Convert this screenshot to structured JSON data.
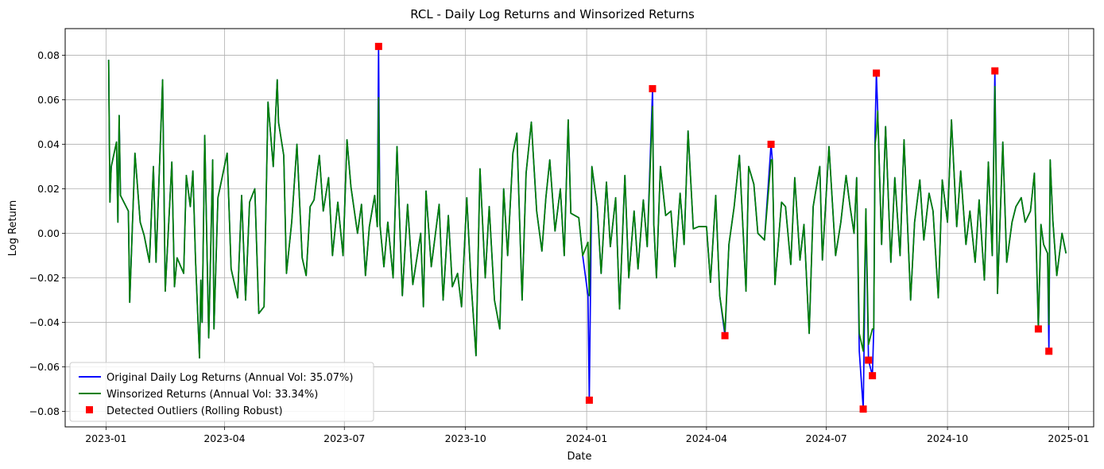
{
  "chart_data": {
    "type": "line",
    "title": "RCL - Daily Log Returns and Winsorized Returns",
    "xlabel": "Date",
    "ylabel": "Log Return",
    "xlim": [
      "2022-12-01",
      "2025-01-20"
    ],
    "ylim": [
      -0.087,
      0.092
    ],
    "grid": true,
    "legend_position": "lower-left",
    "x_ticks": [
      "2023-01",
      "2023-04",
      "2023-07",
      "2023-10",
      "2024-01",
      "2024-04",
      "2024-07",
      "2024-10",
      "2025-01"
    ],
    "y_ticks": [
      0.08,
      0.06,
      0.04,
      0.02,
      0.0,
      -0.02,
      -0.04,
      -0.06,
      -0.08
    ],
    "y_tick_labels": [
      "0.08",
      "0.06",
      "0.04",
      "0.02",
      "0.00",
      "−0.02",
      "−0.04",
      "−0.06",
      "−0.08"
    ],
    "series": [
      {
        "name": "Original Daily Log Returns (Annual Vol: 35.07%)",
        "color": "#0000ff",
        "kind": "line",
        "points": [
          [
            "2023-01-03",
            0.078
          ],
          [
            "2023-01-04",
            0.014
          ],
          [
            "2023-01-05",
            0.03
          ],
          [
            "2023-01-09",
            0.041
          ],
          [
            "2023-01-10",
            0.005
          ],
          [
            "2023-01-11",
            0.053
          ],
          [
            "2023-01-12",
            0.017
          ],
          [
            "2023-01-18",
            0.01
          ],
          [
            "2023-01-19",
            -0.031
          ],
          [
            "2023-01-23",
            0.036
          ],
          [
            "2023-01-27",
            0.005
          ],
          [
            "2023-01-30",
            -0.001
          ],
          [
            "2023-02-03",
            -0.013
          ],
          [
            "2023-02-06",
            0.03
          ],
          [
            "2023-02-08",
            -0.013
          ],
          [
            "2023-02-13",
            0.069
          ],
          [
            "2023-02-15",
            -0.026
          ],
          [
            "2023-02-20",
            0.032
          ],
          [
            "2023-02-22",
            -0.024
          ],
          [
            "2023-02-24",
            -0.011
          ],
          [
            "2023-03-01",
            -0.018
          ],
          [
            "2023-03-03",
            0.026
          ],
          [
            "2023-03-06",
            0.012
          ],
          [
            "2023-03-08",
            0.028
          ],
          [
            "2023-03-10",
            -0.012
          ],
          [
            "2023-03-13",
            -0.056
          ],
          [
            "2023-03-14",
            -0.021
          ],
          [
            "2023-03-15",
            -0.04
          ],
          [
            "2023-03-17",
            0.044
          ],
          [
            "2023-03-20",
            -0.047
          ],
          [
            "2023-03-23",
            0.033
          ],
          [
            "2023-03-24",
            -0.043
          ],
          [
            "2023-03-27",
            0.016
          ],
          [
            "2023-04-03",
            0.036
          ],
          [
            "2023-04-06",
            -0.016
          ],
          [
            "2023-04-11",
            -0.029
          ],
          [
            "2023-04-14",
            0.017
          ],
          [
            "2023-04-17",
            -0.03
          ],
          [
            "2023-04-20",
            0.014
          ],
          [
            "2023-04-24",
            0.02
          ],
          [
            "2023-04-27",
            -0.036
          ],
          [
            "2023-05-01",
            -0.033
          ],
          [
            "2023-05-04",
            0.059
          ],
          [
            "2023-05-08",
            0.03
          ],
          [
            "2023-05-11",
            0.069
          ],
          [
            "2023-05-12",
            0.05
          ],
          [
            "2023-05-16",
            0.035
          ],
          [
            "2023-05-18",
            -0.018
          ],
          [
            "2023-05-22",
            0.005
          ],
          [
            "2023-05-26",
            0.04
          ],
          [
            "2023-05-30",
            -0.011
          ],
          [
            "2023-06-02",
            -0.019
          ],
          [
            "2023-06-05",
            0.012
          ],
          [
            "2023-06-08",
            0.015
          ],
          [
            "2023-06-12",
            0.035
          ],
          [
            "2023-06-15",
            0.01
          ],
          [
            "2023-06-19",
            0.025
          ],
          [
            "2023-06-22",
            -0.01
          ],
          [
            "2023-06-26",
            0.014
          ],
          [
            "2023-06-30",
            -0.01
          ],
          [
            "2023-07-03",
            0.042
          ],
          [
            "2023-07-06",
            0.021
          ],
          [
            "2023-07-11",
            0.0
          ],
          [
            "2023-07-14",
            0.013
          ],
          [
            "2023-07-17",
            -0.019
          ],
          [
            "2023-07-20",
            0.003
          ],
          [
            "2023-07-24",
            0.017
          ],
          [
            "2023-07-26",
            0.003
          ],
          [
            "2023-07-27",
            0.084
          ],
          [
            "2023-07-28",
            0.004
          ],
          [
            "2023-07-31",
            -0.015
          ],
          [
            "2023-08-03",
            0.005
          ],
          [
            "2023-08-07",
            -0.02
          ],
          [
            "2023-08-10",
            0.039
          ],
          [
            "2023-08-14",
            -0.028
          ],
          [
            "2023-08-18",
            0.013
          ],
          [
            "2023-08-22",
            -0.023
          ],
          [
            "2023-08-28",
            0.0
          ],
          [
            "2023-08-30",
            -0.033
          ],
          [
            "2023-09-01",
            0.019
          ],
          [
            "2023-09-05",
            -0.015
          ],
          [
            "2023-09-11",
            0.013
          ],
          [
            "2023-09-14",
            -0.03
          ],
          [
            "2023-09-18",
            0.008
          ],
          [
            "2023-09-21",
            -0.024
          ],
          [
            "2023-09-25",
            -0.018
          ],
          [
            "2023-09-28",
            -0.033
          ],
          [
            "2023-10-02",
            0.016
          ],
          [
            "2023-10-05",
            -0.02
          ],
          [
            "2023-10-09",
            -0.055
          ],
          [
            "2023-10-12",
            0.029
          ],
          [
            "2023-10-16",
            -0.02
          ],
          [
            "2023-10-19",
            0.012
          ],
          [
            "2023-10-23",
            -0.03
          ],
          [
            "2023-10-27",
            -0.043
          ],
          [
            "2023-10-30",
            0.02
          ],
          [
            "2023-11-02",
            -0.01
          ],
          [
            "2023-11-06",
            0.036
          ],
          [
            "2023-11-09",
            0.045
          ],
          [
            "2023-11-13",
            -0.03
          ],
          [
            "2023-11-16",
            0.027
          ],
          [
            "2023-11-20",
            0.05
          ],
          [
            "2023-11-24",
            0.01
          ],
          [
            "2023-11-28",
            -0.008
          ],
          [
            "2023-12-01",
            0.016
          ],
          [
            "2023-12-04",
            0.033
          ],
          [
            "2023-12-08",
            0.001
          ],
          [
            "2023-12-12",
            0.02
          ],
          [
            "2023-12-15",
            -0.01
          ],
          [
            "2023-12-18",
            0.051
          ],
          [
            "2023-12-20",
            0.009
          ],
          [
            "2023-12-26",
            0.007
          ],
          [
            "2023-12-29",
            -0.01
          ],
          [
            "2024-01-02",
            -0.028
          ],
          [
            "2024-01-03",
            -0.075
          ],
          [
            "2024-01-05",
            0.03
          ],
          [
            "2024-01-09",
            0.012
          ],
          [
            "2024-01-12",
            -0.018
          ],
          [
            "2024-01-16",
            0.023
          ],
          [
            "2024-01-19",
            -0.006
          ],
          [
            "2024-01-23",
            0.016
          ],
          [
            "2024-01-26",
            -0.034
          ],
          [
            "2024-01-30",
            0.026
          ],
          [
            "2024-02-02",
            -0.02
          ],
          [
            "2024-02-06",
            0.01
          ],
          [
            "2024-02-09",
            -0.016
          ],
          [
            "2024-02-13",
            0.015
          ],
          [
            "2024-02-16",
            -0.006
          ],
          [
            "2024-02-20",
            0.065
          ],
          [
            "2024-02-21",
            0.004
          ],
          [
            "2024-02-23",
            -0.02
          ],
          [
            "2024-02-26",
            0.03
          ],
          [
            "2024-03-01",
            0.008
          ],
          [
            "2024-03-05",
            0.01
          ],
          [
            "2024-03-08",
            -0.015
          ],
          [
            "2024-03-12",
            0.018
          ],
          [
            "2024-03-15",
            -0.005
          ],
          [
            "2024-03-18",
            0.046
          ],
          [
            "2024-03-22",
            0.002
          ],
          [
            "2024-03-26",
            0.003
          ],
          [
            "2024-04-01",
            0.003
          ],
          [
            "2024-04-04",
            -0.022
          ],
          [
            "2024-04-08",
            0.017
          ],
          [
            "2024-04-11",
            -0.028
          ],
          [
            "2024-04-15",
            -0.046
          ],
          [
            "2024-04-18",
            -0.005
          ],
          [
            "2024-04-22",
            0.012
          ],
          [
            "2024-04-26",
            0.035
          ],
          [
            "2024-05-01",
            -0.026
          ],
          [
            "2024-05-03",
            0.03
          ],
          [
            "2024-05-07",
            0.022
          ],
          [
            "2024-05-10",
            0.0
          ],
          [
            "2024-05-15",
            -0.003
          ],
          [
            "2024-05-20",
            0.04
          ],
          [
            "2024-05-21",
            0.033
          ],
          [
            "2024-05-23",
            -0.023
          ],
          [
            "2024-05-28",
            0.014
          ],
          [
            "2024-05-31",
            0.012
          ],
          [
            "2024-06-04",
            -0.014
          ],
          [
            "2024-06-07",
            0.025
          ],
          [
            "2024-06-11",
            -0.012
          ],
          [
            "2024-06-14",
            0.004
          ],
          [
            "2024-06-18",
            -0.045
          ],
          [
            "2024-06-21",
            0.012
          ],
          [
            "2024-06-26",
            0.03
          ],
          [
            "2024-06-28",
            -0.012
          ],
          [
            "2024-07-03",
            0.039
          ],
          [
            "2024-07-08",
            -0.01
          ],
          [
            "2024-07-12",
            0.005
          ],
          [
            "2024-07-16",
            0.026
          ],
          [
            "2024-07-19",
            0.012
          ],
          [
            "2024-07-22",
            0.0
          ],
          [
            "2024-07-24",
            0.025
          ],
          [
            "2024-07-26",
            -0.053
          ],
          [
            "2024-07-29",
            -0.079
          ],
          [
            "2024-07-31",
            0.011
          ],
          [
            "2024-08-02",
            -0.057
          ],
          [
            "2024-08-05",
            -0.064
          ],
          [
            "2024-08-06",
            -0.043
          ],
          [
            "2024-08-07",
            0.046
          ],
          [
            "2024-08-08",
            0.072
          ],
          [
            "2024-08-09",
            0.055
          ],
          [
            "2024-08-12",
            -0.005
          ],
          [
            "2024-08-15",
            0.048
          ],
          [
            "2024-08-19",
            -0.013
          ],
          [
            "2024-08-22",
            0.025
          ],
          [
            "2024-08-26",
            -0.01
          ],
          [
            "2024-08-29",
            0.042
          ],
          [
            "2024-09-03",
            -0.03
          ],
          [
            "2024-09-06",
            0.005
          ],
          [
            "2024-09-10",
            0.024
          ],
          [
            "2024-09-13",
            -0.003
          ],
          [
            "2024-09-17",
            0.018
          ],
          [
            "2024-09-20",
            0.01
          ],
          [
            "2024-09-24",
            -0.029
          ],
          [
            "2024-09-27",
            0.024
          ],
          [
            "2024-10-01",
            0.005
          ],
          [
            "2024-10-04",
            0.051
          ],
          [
            "2024-10-08",
            0.003
          ],
          [
            "2024-10-11",
            0.028
          ],
          [
            "2024-10-15",
            -0.005
          ],
          [
            "2024-10-18",
            0.01
          ],
          [
            "2024-10-22",
            -0.013
          ],
          [
            "2024-10-25",
            0.015
          ],
          [
            "2024-10-29",
            -0.021
          ],
          [
            "2024-11-01",
            0.032
          ],
          [
            "2024-11-04",
            -0.01
          ],
          [
            "2024-11-06",
            0.073
          ],
          [
            "2024-11-07",
            0.024
          ],
          [
            "2024-11-08",
            -0.027
          ],
          [
            "2024-11-12",
            0.041
          ],
          [
            "2024-11-15",
            -0.013
          ],
          [
            "2024-11-19",
            0.005
          ],
          [
            "2024-11-22",
            0.012
          ],
          [
            "2024-11-26",
            0.016
          ],
          [
            "2024-11-29",
            0.005
          ],
          [
            "2024-12-03",
            0.01
          ],
          [
            "2024-12-06",
            0.027
          ],
          [
            "2024-12-09",
            -0.043
          ],
          [
            "2024-12-11",
            0.004
          ],
          [
            "2024-12-13",
            -0.005
          ],
          [
            "2024-12-16",
            -0.009
          ],
          [
            "2024-12-17",
            -0.053
          ],
          [
            "2024-12-18",
            0.033
          ],
          [
            "2024-12-20",
            0.006
          ],
          [
            "2024-12-23",
            -0.019
          ],
          [
            "2024-12-27",
            0.0
          ],
          [
            "2024-12-30",
            -0.009
          ]
        ]
      },
      {
        "name": "Winsorized Returns (Annual Vol: 33.34%)",
        "color": "#008000",
        "kind": "line",
        "note_clipped": true,
        "clipped": [
          [
            "2023-07-27",
            0.061
          ],
          [
            "2024-01-02",
            -0.004
          ],
          [
            "2024-01-03",
            -0.028
          ],
          [
            "2024-02-20",
            0.057
          ],
          [
            "2024-04-15",
            -0.044
          ],
          [
            "2024-05-20",
            0.033
          ],
          [
            "2024-07-26",
            -0.045
          ],
          [
            "2024-07-29",
            -0.053
          ],
          [
            "2024-08-02",
            -0.05
          ],
          [
            "2024-08-05",
            -0.043
          ],
          [
            "2024-08-07",
            0.04
          ],
          [
            "2024-08-08",
            0.045
          ],
          [
            "2024-11-06",
            0.066
          ],
          [
            "2024-12-09",
            -0.042
          ],
          [
            "2024-12-17",
            -0.041
          ]
        ]
      },
      {
        "name": "Detected Outliers (Rolling Robust)",
        "color": "#ff0000",
        "kind": "scatter",
        "points": [
          [
            "2023-07-27",
            0.084
          ],
          [
            "2024-01-03",
            -0.075
          ],
          [
            "2024-02-20",
            0.065
          ],
          [
            "2024-04-15",
            -0.046
          ],
          [
            "2024-05-20",
            0.04
          ],
          [
            "2024-07-29",
            -0.079
          ],
          [
            "2024-08-02",
            -0.057
          ],
          [
            "2024-08-05",
            -0.064
          ],
          [
            "2024-08-08",
            0.072
          ],
          [
            "2024-11-06",
            0.073
          ],
          [
            "2024-12-09",
            -0.043
          ],
          [
            "2024-12-17",
            -0.053
          ]
        ]
      }
    ]
  }
}
